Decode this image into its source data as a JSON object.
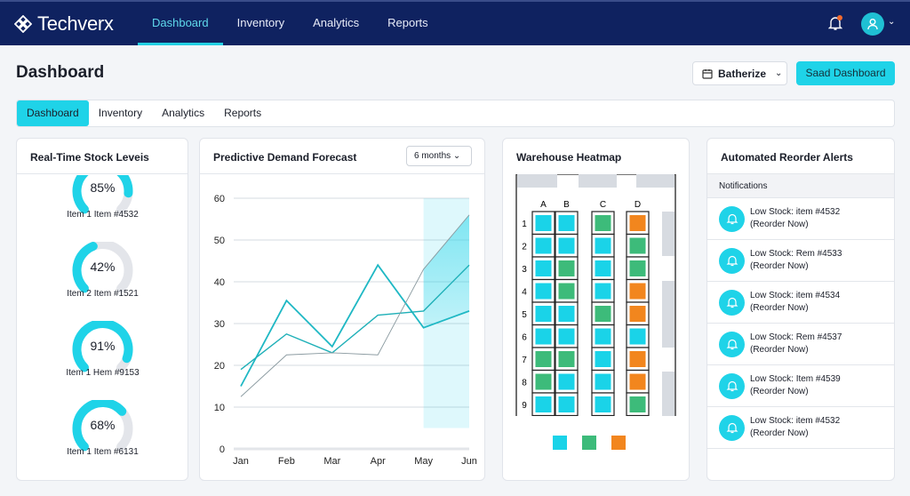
{
  "app": {
    "name": "Techverx",
    "nav": [
      "Dashboard",
      "Inventory",
      "Analytics",
      "Reports"
    ],
    "active_nav": 0
  },
  "page": {
    "title": "Dashboard",
    "batch_select": "Batherize",
    "save_button": "Saad Dashboard",
    "tabs": [
      "Dashboard",
      "Inventory",
      "Analytics",
      "Reports"
    ],
    "active_tab": 0
  },
  "stock": {
    "title": "Real-Time Stock Leveis",
    "items": [
      {
        "pct": 85,
        "label": "85%",
        "name": "Item 1 Item #4532"
      },
      {
        "pct": 42,
        "label": "42%",
        "name": "Item 2 Item #1521"
      },
      {
        "pct": 91,
        "label": "91%",
        "name": "Item 1 Hem #9153"
      },
      {
        "pct": 68,
        "label": "68%",
        "name": "Item 1 Item #6131"
      }
    ]
  },
  "forecast": {
    "title": "Predictive Demand Forecast",
    "range": "6 months"
  },
  "chart_data": {
    "type": "line",
    "categories": [
      "Jan",
      "Feb",
      "Mar",
      "Apr",
      "May",
      "Jun"
    ],
    "yticks": [
      "0",
      "10",
      "20",
      "30",
      "40",
      "50",
      "60"
    ],
    "ylim": [
      0,
      60
    ],
    "grid": true,
    "forecast_region": [
      "May",
      "Jun"
    ],
    "series": [
      {
        "values": [
          15,
          35.5,
          24.5,
          44,
          29,
          33
        ],
        "color": "#1fb8c4"
      },
      {
        "values": [
          19,
          27.5,
          23,
          32,
          33,
          44
        ],
        "color": "#1fb0b8"
      },
      {
        "values": [
          12.5,
          22.5,
          23,
          22.5,
          43,
          56
        ],
        "color": "#8a9aa0"
      }
    ]
  },
  "heatmap": {
    "title": "Warehouse Heatmap",
    "columns": [
      "A",
      "B",
      "C",
      "D"
    ],
    "rows": [
      "1",
      "2",
      "3",
      "4",
      "5",
      "6",
      "7",
      "8",
      "9"
    ],
    "colors": {
      "c": "#1ad3e8",
      "g": "#3dbb7a",
      "o": "#f2861e"
    },
    "cells": [
      [
        "c",
        "c",
        "g",
        "o"
      ],
      [
        "c",
        "c",
        "c",
        "g"
      ],
      [
        "c",
        "g",
        "c",
        "g"
      ],
      [
        "c",
        "g",
        "c",
        "o"
      ],
      [
        "c",
        "c",
        "g",
        "o"
      ],
      [
        "c",
        "c",
        "c",
        "c"
      ],
      [
        "g",
        "g",
        "c",
        "o"
      ],
      [
        "g",
        "c",
        "c",
        "o"
      ],
      [
        "c",
        "c",
        "c",
        "g"
      ]
    ],
    "legend": [
      "c",
      "g",
      "o"
    ]
  },
  "alerts": {
    "title": "Automated Reorder Alerts",
    "section": "Notifications",
    "items": [
      {
        "line1": "Low Stock: item #4532",
        "line2": "(Reorder Now)"
      },
      {
        "line1": "Low Stock: Rem #4533",
        "line2": "(Reorder Now)"
      },
      {
        "line1": "Low Stock: item #4534",
        "line2": "(Reorder Now)"
      },
      {
        "line1": "Low Stock: Rem #4537",
        "line2": "(Reorder Now)"
      },
      {
        "line1": "Low Stock: Item #4539",
        "line2": "(Reorder Now)"
      },
      {
        "line1": "Low Stock: item #4532",
        "line2": "(Reorder Now)"
      }
    ]
  }
}
